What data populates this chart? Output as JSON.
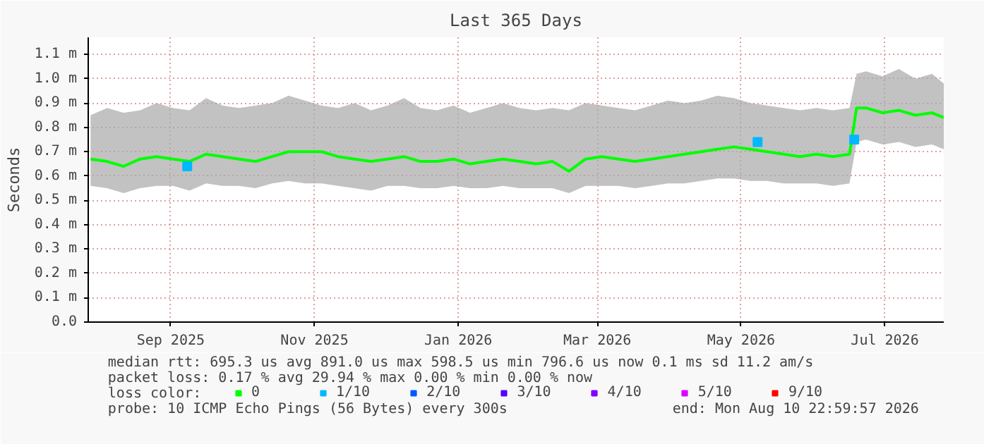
{
  "chart_data": {
    "type": "line",
    "title": "Last 365 Days",
    "ylabel": "Seconds",
    "ylim": [
      0,
      1.17
    ],
    "yticks": [
      {
        "value": 0,
        "label": "0.0"
      },
      {
        "value": 0.1,
        "label": "0.1 m"
      },
      {
        "value": 0.2,
        "label": "0.2 m"
      },
      {
        "value": 0.3,
        "label": "0.3 m"
      },
      {
        "value": 0.4,
        "label": "0.4 m"
      },
      {
        "value": 0.5,
        "label": "0.5 m"
      },
      {
        "value": 0.6,
        "label": "0.6 m"
      },
      {
        "value": 0.7,
        "label": "0.7 m"
      },
      {
        "value": 0.8,
        "label": "0.8 m"
      },
      {
        "value": 0.9,
        "label": "0.9 m"
      },
      {
        "value": 1.0,
        "label": "1.0 m"
      },
      {
        "value": 1.1,
        "label": "1.1 m"
      }
    ],
    "xlim": [
      "2025-08-12",
      "2026-08-10"
    ],
    "xticks": [
      {
        "value": "2025-09-16",
        "label": "Sep 2025"
      },
      {
        "value": "2025-11-16",
        "label": "Nov 2025"
      },
      {
        "value": "2026-01-16",
        "label": "Jan 2026"
      },
      {
        "value": "2026-03-16",
        "label": "Mar 2026"
      },
      {
        "value": "2026-05-16",
        "label": "May 2026"
      },
      {
        "value": "2026-07-16",
        "label": "Jul 2026"
      }
    ],
    "grid": true,
    "legend": "bottom",
    "legend_title": "loss color:",
    "line_style": "solid",
    "x": [
      "2025-08-13",
      "2025-08-20",
      "2025-08-27",
      "2025-09-03",
      "2025-09-10",
      "2025-09-17",
      "2025-09-24",
      "2025-10-01",
      "2025-10-08",
      "2025-10-15",
      "2025-10-22",
      "2025-10-29",
      "2025-11-05",
      "2025-11-12",
      "2025-11-19",
      "2025-11-26",
      "2025-12-03",
      "2025-12-10",
      "2025-12-17",
      "2025-12-24",
      "2025-12-31",
      "2026-01-07",
      "2026-01-14",
      "2026-01-21",
      "2026-01-28",
      "2026-02-04",
      "2026-02-11",
      "2026-02-18",
      "2026-02-25",
      "2026-03-04",
      "2026-03-11",
      "2026-03-18",
      "2026-03-25",
      "2026-04-01",
      "2026-04-08",
      "2026-04-15",
      "2026-04-22",
      "2026-04-29",
      "2026-05-06",
      "2026-05-13",
      "2026-05-20",
      "2026-05-27",
      "2026-06-03",
      "2026-06-10",
      "2026-06-17",
      "2026-06-24",
      "2026-07-01",
      "2026-07-04",
      "2026-07-08",
      "2026-07-15",
      "2026-07-22",
      "2026-07-29",
      "2026-08-05",
      "2026-08-10"
    ],
    "series": [
      {
        "name": "0",
        "color": "#00ff00",
        "values": [
          0.67,
          0.66,
          0.64,
          0.67,
          0.68,
          0.67,
          0.66,
          0.69,
          0.68,
          0.67,
          0.66,
          0.68,
          0.7,
          0.7,
          0.7,
          0.68,
          0.67,
          0.66,
          0.67,
          0.68,
          0.66,
          0.66,
          0.67,
          0.65,
          0.66,
          0.67,
          0.66,
          0.65,
          0.66,
          0.62,
          0.67,
          0.68,
          0.67,
          0.66,
          0.67,
          0.68,
          0.69,
          0.7,
          0.71,
          0.72,
          0.71,
          0.7,
          0.69,
          0.68,
          0.69,
          0.68,
          0.69,
          0.88,
          0.88,
          0.86,
          0.87,
          0.85,
          0.86,
          0.84
        ],
        "lower": [
          0.56,
          0.55,
          0.53,
          0.55,
          0.56,
          0.56,
          0.54,
          0.57,
          0.56,
          0.56,
          0.55,
          0.57,
          0.58,
          0.57,
          0.57,
          0.56,
          0.55,
          0.54,
          0.56,
          0.56,
          0.55,
          0.55,
          0.56,
          0.55,
          0.55,
          0.56,
          0.55,
          0.55,
          0.55,
          0.53,
          0.56,
          0.56,
          0.56,
          0.55,
          0.56,
          0.57,
          0.57,
          0.58,
          0.59,
          0.59,
          0.58,
          0.58,
          0.57,
          0.57,
          0.57,
          0.56,
          0.57,
          0.74,
          0.75,
          0.73,
          0.74,
          0.72,
          0.73,
          0.71
        ],
        "upper": [
          0.85,
          0.88,
          0.86,
          0.87,
          0.9,
          0.88,
          0.87,
          0.92,
          0.89,
          0.88,
          0.89,
          0.9,
          0.93,
          0.91,
          0.89,
          0.88,
          0.9,
          0.87,
          0.89,
          0.92,
          0.88,
          0.87,
          0.89,
          0.86,
          0.88,
          0.9,
          0.88,
          0.87,
          0.88,
          0.87,
          0.9,
          0.89,
          0.88,
          0.87,
          0.89,
          0.91,
          0.9,
          0.91,
          0.93,
          0.92,
          0.9,
          0.89,
          0.88,
          0.87,
          0.88,
          0.87,
          0.88,
          1.02,
          1.03,
          1.01,
          1.04,
          1.0,
          1.02,
          0.98
        ]
      },
      {
        "name": "1/10",
        "color": "#00b8ff",
        "type": "scatter",
        "marker": "square",
        "x": [
          "2025-09-23",
          "2026-05-23",
          "2026-07-03"
        ],
        "values": [
          0.64,
          0.74,
          0.75
        ]
      },
      {
        "name": "2/10",
        "color": "#0059ff",
        "type": "scatter",
        "values": [
          null,
          null,
          null,
          null,
          null,
          null,
          null,
          null,
          null,
          null,
          null,
          null,
          null,
          null,
          null,
          null,
          null,
          null,
          null,
          null,
          null,
          null,
          null,
          null,
          null,
          null,
          null,
          null,
          null,
          null,
          null,
          null,
          null,
          null,
          null,
          null,
          null,
          null,
          null,
          null,
          null,
          null,
          null,
          null,
          null,
          null,
          null,
          null,
          null,
          null,
          null,
          null,
          null,
          null
        ]
      },
      {
        "name": "3/10",
        "color": "#5500ff",
        "type": "scatter",
        "values": [
          null,
          null,
          null,
          null,
          null,
          null,
          null,
          null,
          null,
          null,
          null,
          null,
          null,
          null,
          null,
          null,
          null,
          null,
          null,
          null,
          null,
          null,
          null,
          null,
          null,
          null,
          null,
          null,
          null,
          null,
          null,
          null,
          null,
          null,
          null,
          null,
          null,
          null,
          null,
          null,
          null,
          null,
          null,
          null,
          null,
          null,
          null,
          null,
          null,
          null,
          null,
          null,
          null,
          null
        ]
      },
      {
        "name": "4/10",
        "color": "#7e00ff",
        "type": "scatter",
        "values": [
          null,
          null,
          null,
          null,
          null,
          null,
          null,
          null,
          null,
          null,
          null,
          null,
          null,
          null,
          null,
          null,
          null,
          null,
          null,
          null,
          null,
          null,
          null,
          null,
          null,
          null,
          null,
          null,
          null,
          null,
          null,
          null,
          null,
          null,
          null,
          null,
          null,
          null,
          null,
          null,
          null,
          null,
          null,
          null,
          null,
          null,
          null,
          null,
          null,
          null,
          null,
          null,
          null,
          null
        ]
      },
      {
        "name": "5/10",
        "color": "#dd00ff",
        "type": "scatter",
        "values": [
          null,
          null,
          null,
          null,
          null,
          null,
          null,
          null,
          null,
          null,
          null,
          null,
          null,
          null,
          null,
          null,
          null,
          null,
          null,
          null,
          null,
          null,
          null,
          null,
          null,
          null,
          null,
          null,
          null,
          null,
          null,
          null,
          null,
          null,
          null,
          null,
          null,
          null,
          null,
          null,
          null,
          null,
          null,
          null,
          null,
          null,
          null,
          null,
          null,
          null,
          null,
          null,
          null,
          null
        ]
      },
      {
        "name": "9/10",
        "color": "#ff0000",
        "type": "scatter",
        "values": [
          null,
          null,
          null,
          null,
          null,
          null,
          null,
          null,
          null,
          null,
          null,
          null,
          null,
          null,
          null,
          null,
          null,
          null,
          null,
          null,
          null,
          null,
          null,
          null,
          null,
          null,
          null,
          null,
          null,
          null,
          null,
          null,
          null,
          null,
          null,
          null,
          null,
          null,
          null,
          null,
          null,
          null,
          null,
          null,
          null,
          null,
          null,
          null,
          null,
          null,
          null,
          null,
          null,
          null
        ]
      }
    ],
    "annotations": [
      "median rtt:  695.3 us avg  891.0 us max  598.5 us min  796.6 us now  0.1 ms sd  11.2   am/s",
      "packet loss: 0.17 % avg  29.94 % max  0.00 % min  0.00 % now",
      "probe:       10 ICMP Echo Pings (56 Bytes) every 300s",
      "end: Mon Aug 10 22:59:57 2026"
    ]
  }
}
